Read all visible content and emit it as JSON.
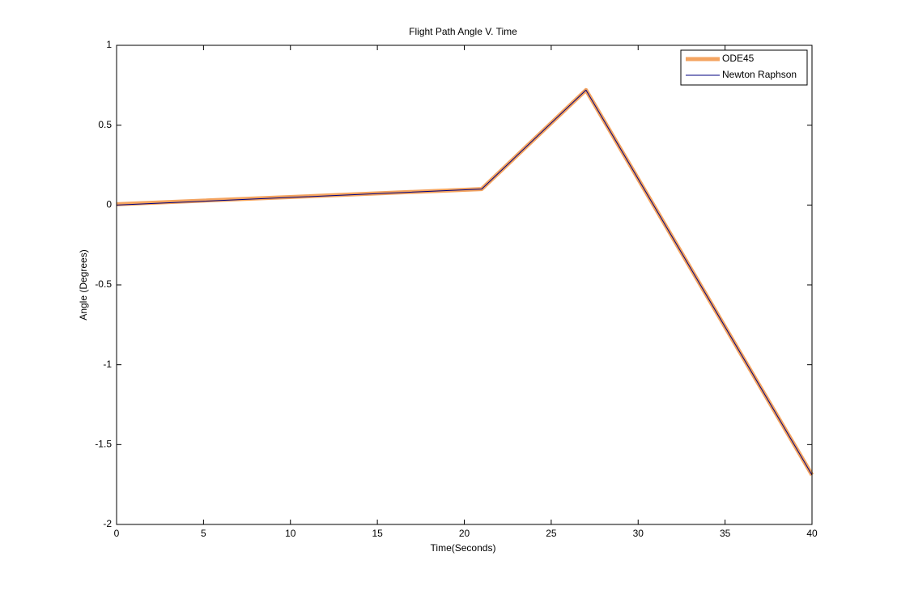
{
  "chart_data": {
    "type": "line",
    "title": "Flight Path Angle V. Time",
    "x_label": "Time(Seconds)",
    "y_label": "Angle (Degrees)",
    "x": [
      0,
      21,
      27,
      40
    ],
    "series": [
      {
        "name": "ODE45",
        "color": "#f4a460",
        "line_width": 5,
        "values": [
          0.005,
          0.1,
          0.72,
          -1.69
        ]
      },
      {
        "name": "Newton Raphson",
        "color": "#00007f",
        "line_width": 1,
        "values": [
          0,
          0.1,
          0.72,
          -1.69
        ]
      }
    ],
    "xlim": [
      0,
      40
    ],
    "xticks": [
      0,
      5,
      10,
      15,
      20,
      25,
      30,
      35,
      40
    ],
    "ylim": [
      -2,
      1
    ],
    "yticks": [
      -2,
      -1.5,
      -1,
      -0.5,
      0,
      0.5,
      1
    ],
    "grid": false,
    "legend": "top-right"
  }
}
